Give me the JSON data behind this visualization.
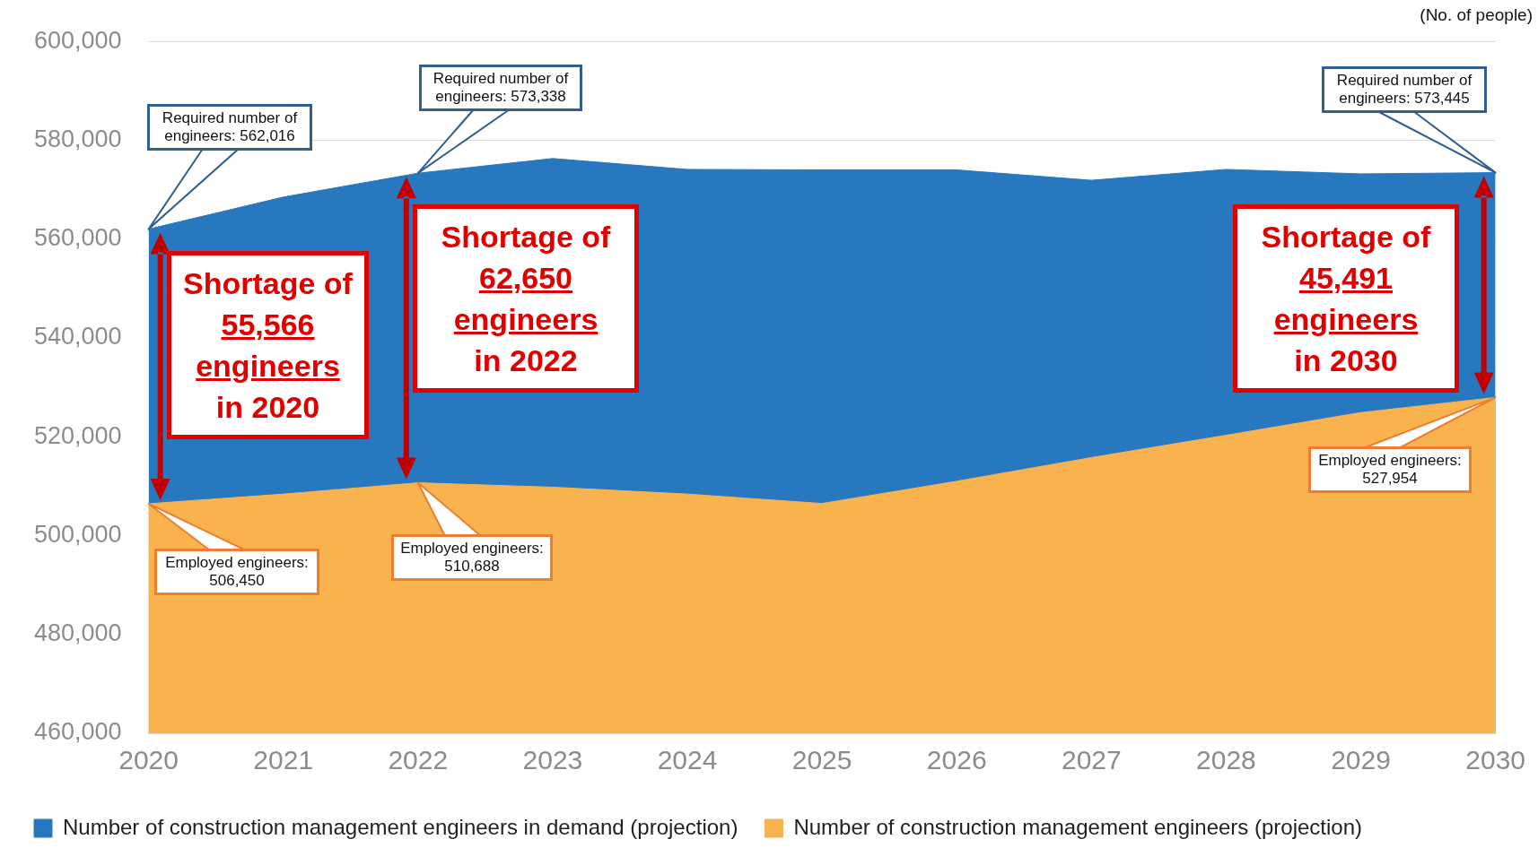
{
  "chart_data": {
    "type": "area",
    "x": [
      2020,
      2021,
      2022,
      2023,
      2024,
      2025,
      2026,
      2027,
      2028,
      2029,
      2030
    ],
    "series": [
      {
        "name": "Number of construction management engineers in demand (projection)",
        "color": "#2878c0",
        "values": [
          562016,
          568500,
          573338,
          576300,
          574100,
          574000,
          574000,
          571900,
          574100,
          573200,
          573445
        ]
      },
      {
        "name": "Number of construction management engineers (projection)",
        "color": "#f8b34f",
        "values": [
          506450,
          508400,
          510688,
          509800,
          508400,
          506500,
          511000,
          515800,
          520300,
          524900,
          527954
        ]
      }
    ],
    "xlim": [
      2020,
      2030
    ],
    "xticks": [
      2020,
      2021,
      2022,
      2023,
      2024,
      2025,
      2026,
      2027,
      2028,
      2029,
      2030
    ],
    "ylim": [
      460000,
      600000
    ],
    "yticks": [
      {
        "value": 460000,
        "label": "460,000"
      },
      {
        "value": 480000,
        "label": "480,000"
      },
      {
        "value": 500000,
        "label": "500,000"
      },
      {
        "value": 520000,
        "label": "520,000"
      },
      {
        "value": 540000,
        "label": "540,000"
      },
      {
        "value": 560000,
        "label": "560,000"
      },
      {
        "value": 580000,
        "label": "580,000"
      },
      {
        "value": 600000,
        "label": "600,000"
      }
    ],
    "ylabel": "(No. of people)",
    "grid": "y",
    "legend": "bottom",
    "annotations": [
      "Required number of engineers: 562,016",
      "Required number of engineers: 573,338",
      "Required number of engineers: 573,445",
      "Employed engineers: 506,450",
      "Employed engineers: 510,688",
      "Employed engineers: 527,954",
      "Shortage of 55,566 engineers in 2020",
      "Shortage of 62,650 engineers in 2022",
      "Shortage of 45,491 engineers in 2030"
    ]
  }
}
